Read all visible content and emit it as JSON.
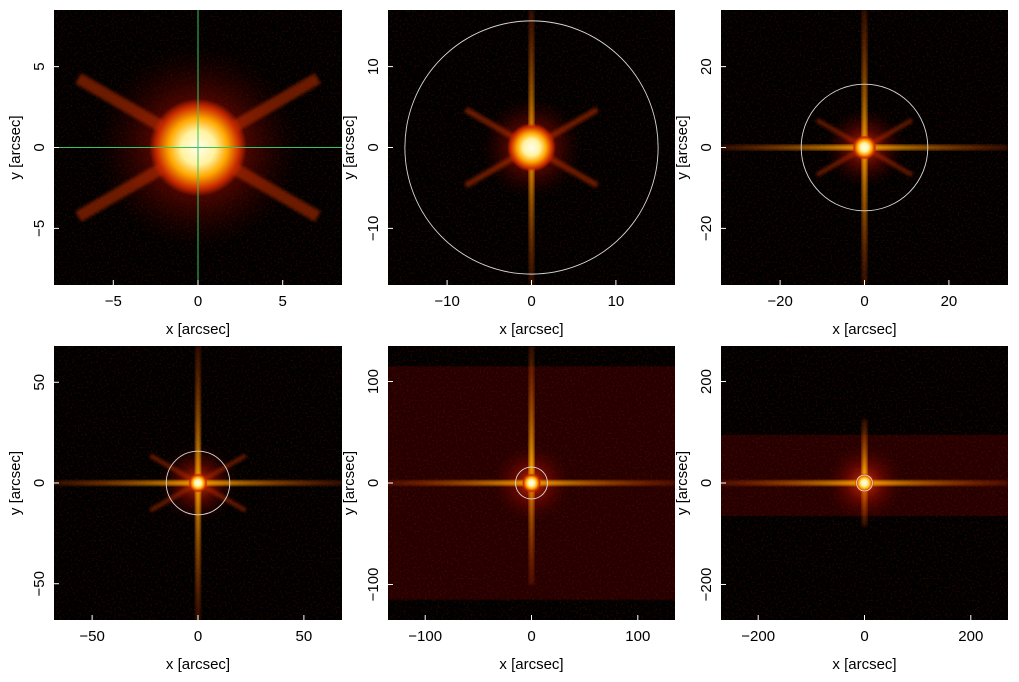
{
  "colors": {
    "background": "#000000",
    "colormap": [
      "#000000",
      "#3a0000",
      "#8a0a00",
      "#d23c00",
      "#ff9000",
      "#ffd850",
      "#ffffe8"
    ],
    "crosshair": "#37c45a",
    "circle": "#d8d8d8"
  },
  "chart_data": [
    {
      "type": "heatmap",
      "xlabel": "x [arcsec]",
      "ylabel": "y [arcsec]",
      "xlim": [
        -8.5,
        8.5
      ],
      "ylim": [
        -8.5,
        8.5
      ],
      "xticks": [
        -5,
        0,
        5
      ],
      "yticks": [
        -5,
        0,
        5
      ],
      "xtick_labels": [
        "−5",
        "0",
        "5"
      ],
      "ytick_labels": [
        "−5",
        "0",
        "5"
      ],
      "overlay": {
        "kind": "crosshair",
        "center": [
          0,
          0
        ]
      },
      "features": {
        "core_radius": 1.2,
        "spikes": [
          "diagonal"
        ]
      }
    },
    {
      "type": "heatmap",
      "xlabel": "x [arcsec]",
      "ylabel": "y [arcsec]",
      "xlim": [
        -17,
        17
      ],
      "ylim": [
        -17,
        17
      ],
      "xticks": [
        -10,
        0,
        10
      ],
      "yticks": [
        -10,
        0,
        10
      ],
      "xtick_labels": [
        "−10",
        "0",
        "10"
      ],
      "ytick_labels": [
        "−10",
        "0",
        "10"
      ],
      "overlay": {
        "kind": "circle",
        "center": [
          0,
          0
        ],
        "radius": 15
      },
      "features": {
        "core_radius": 1.2,
        "spikes": [
          "vertical",
          "diagonal"
        ]
      }
    },
    {
      "type": "heatmap",
      "xlabel": "x [arcsec]",
      "ylabel": "y [arcsec]",
      "xlim": [
        -34,
        34
      ],
      "ylim": [
        -34,
        34
      ],
      "xticks": [
        -20,
        0,
        20
      ],
      "yticks": [
        -20,
        0,
        20
      ],
      "xtick_labels": [
        "−20",
        "0",
        "20"
      ],
      "ytick_labels": [
        "−20",
        "0",
        "20"
      ],
      "overlay": {
        "kind": "circle",
        "center": [
          0,
          0
        ],
        "radius": 15
      },
      "features": {
        "core_radius": 1.2,
        "spikes": [
          "vertical",
          "horizontal",
          "diagonal"
        ]
      }
    },
    {
      "type": "heatmap",
      "xlabel": "x [arcsec]",
      "ylabel": "y [arcsec]",
      "xlim": [
        -68,
        68
      ],
      "ylim": [
        -68,
        68
      ],
      "xticks": [
        -50,
        0,
        50
      ],
      "yticks": [
        -50,
        0,
        50
      ],
      "xtick_labels": [
        "−50",
        "0",
        "50"
      ],
      "ytick_labels": [
        "−50",
        "0",
        "50"
      ],
      "overlay": {
        "kind": "circle",
        "center": [
          0,
          0
        ],
        "radius": 15
      },
      "features": {
        "core_radius": 1.5,
        "spikes": [
          "vertical",
          "horizontal",
          "diagonal"
        ]
      }
    },
    {
      "type": "heatmap",
      "xlabel": "x [arcsec]",
      "ylabel": "y [arcsec]",
      "xlim": [
        -135,
        135
      ],
      "ylim": [
        -135,
        135
      ],
      "xticks": [
        -100,
        0,
        100
      ],
      "yticks": [
        -100,
        0,
        100
      ],
      "xtick_labels": [
        "−100",
        "0",
        "100"
      ],
      "ytick_labels": [
        "−100",
        "0",
        "100"
      ],
      "overlay": {
        "kind": "circle",
        "center": [
          0,
          0
        ],
        "radius": 15
      },
      "features": {
        "core_radius": 3,
        "spikes": [
          "vertical",
          "horizontal"
        ],
        "band_halfwidth_y": 115
      }
    },
    {
      "type": "heatmap",
      "xlabel": "x [arcsec]",
      "ylabel": "y [arcsec]",
      "xlim": [
        -270,
        270
      ],
      "ylim": [
        -270,
        270
      ],
      "xticks": [
        -200,
        0,
        200
      ],
      "yticks": [
        -200,
        0,
        200
      ],
      "xtick_labels": [
        "−200",
        "0",
        "200"
      ],
      "ytick_labels": [
        "−200",
        "0",
        "200"
      ],
      "overlay": {
        "kind": "circle",
        "center": [
          0,
          0
        ],
        "radius": 15
      },
      "features": {
        "core_radius": 5,
        "spikes": [
          "vertical",
          "horizontal"
        ],
        "band_y_range": [
          -65,
          95
        ]
      }
    }
  ]
}
